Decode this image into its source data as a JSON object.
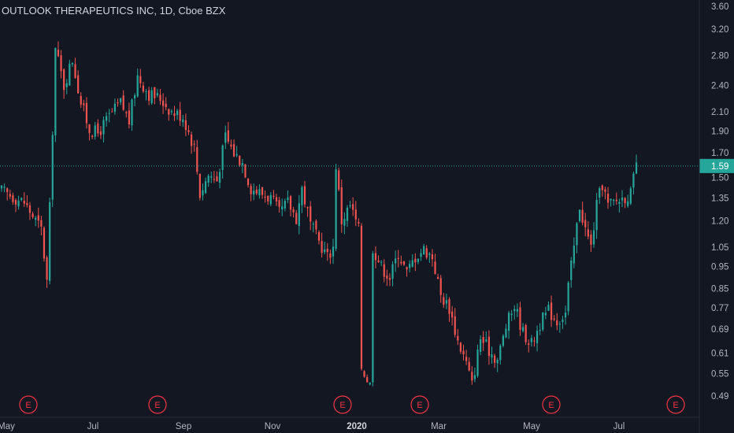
{
  "title": "OUTLOOK THERAPEUTICS INC, 1D, Cboe BZX",
  "colors": {
    "background": "#131722",
    "up": "#26a69a",
    "down": "#ef5350",
    "earnings": "#f23645",
    "price_line": "#26a69a",
    "axis_text": "#b2b5be"
  },
  "chart_data": {
    "type": "candlestick",
    "title": "OUTLOOK THERAPEUTICS INC, 1D, Cboe BZX",
    "y_scale": "log",
    "y_ticks": [
      "3.60",
      "3.20",
      "2.80",
      "2.40",
      "2.10",
      "1.90",
      "1.70",
      "1.50",
      "1.35",
      "1.20",
      "1.05",
      "0.95",
      "0.85",
      "0.77",
      "0.69",
      "0.61",
      "0.55",
      "0.49"
    ],
    "ylim": [
      0.46,
      3.65
    ],
    "x_labels": [
      "May",
      "Jul",
      "Sep",
      "Nov",
      "2020",
      "Mar",
      "May",
      "Jul"
    ],
    "x_labels_bold": [
      "2020"
    ],
    "last_price": "1.59",
    "earnings_marker": "E",
    "earnings_count": 7,
    "waypoints": [
      [
        0,
        1.4
      ],
      [
        8,
        1.32
      ],
      [
        14,
        1.15
      ],
      [
        16,
        0.88
      ],
      [
        17,
        1.28
      ],
      [
        19,
        2.9
      ],
      [
        22,
        2.4
      ],
      [
        25,
        2.75
      ],
      [
        28,
        2.2
      ],
      [
        31,
        1.92
      ],
      [
        34,
        1.88
      ],
      [
        38,
        2.05
      ],
      [
        42,
        2.2
      ],
      [
        45,
        2.0
      ],
      [
        48,
        2.52
      ],
      [
        52,
        2.3
      ],
      [
        56,
        2.25
      ],
      [
        60,
        2.1
      ],
      [
        64,
        2.05
      ],
      [
        68,
        1.75
      ],
      [
        70,
        1.38
      ],
      [
        73,
        1.52
      ],
      [
        76,
        1.48
      ],
      [
        79,
        1.85
      ],
      [
        82,
        1.7
      ],
      [
        85,
        1.62
      ],
      [
        88,
        1.42
      ],
      [
        92,
        1.38
      ],
      [
        95,
        1.35
      ],
      [
        98,
        1.25
      ],
      [
        101,
        1.32
      ],
      [
        104,
        1.22
      ],
      [
        106,
        1.42
      ],
      [
        109,
        1.18
      ],
      [
        112,
        1.08
      ],
      [
        115,
        1.0
      ],
      [
        117,
        1.05
      ],
      [
        118,
        1.6
      ],
      [
        120,
        1.2
      ],
      [
        123,
        1.3
      ],
      [
        126,
        1.15
      ],
      [
        127,
        0.57
      ],
      [
        130,
        0.52
      ],
      [
        131,
        1.05
      ],
      [
        134,
        0.95
      ],
      [
        137,
        0.9
      ],
      [
        140,
        1.02
      ],
      [
        143,
        0.92
      ],
      [
        146,
        1.0
      ],
      [
        149,
        1.04
      ],
      [
        152,
        1.0
      ],
      [
        155,
        0.82
      ],
      [
        158,
        0.77
      ],
      [
        161,
        0.65
      ],
      [
        164,
        0.58
      ],
      [
        166,
        0.52
      ],
      [
        169,
        0.66
      ],
      [
        172,
        0.62
      ],
      [
        175,
        0.59
      ],
      [
        178,
        0.7
      ],
      [
        181,
        0.78
      ],
      [
        184,
        0.68
      ],
      [
        187,
        0.64
      ],
      [
        190,
        0.71
      ],
      [
        193,
        0.76
      ],
      [
        196,
        0.72
      ],
      [
        199,
        0.75
      ],
      [
        200,
        0.86
      ],
      [
        202,
        1.05
      ],
      [
        204,
        1.3
      ],
      [
        206,
        1.15
      ],
      [
        208,
        1.05
      ],
      [
        210,
        1.3
      ],
      [
        212,
        1.45
      ],
      [
        214,
        1.3
      ],
      [
        216,
        1.32
      ],
      [
        218,
        1.34
      ],
      [
        220,
        1.36
      ],
      [
        222,
        1.38
      ],
      [
        224,
        1.59
      ]
    ]
  }
}
